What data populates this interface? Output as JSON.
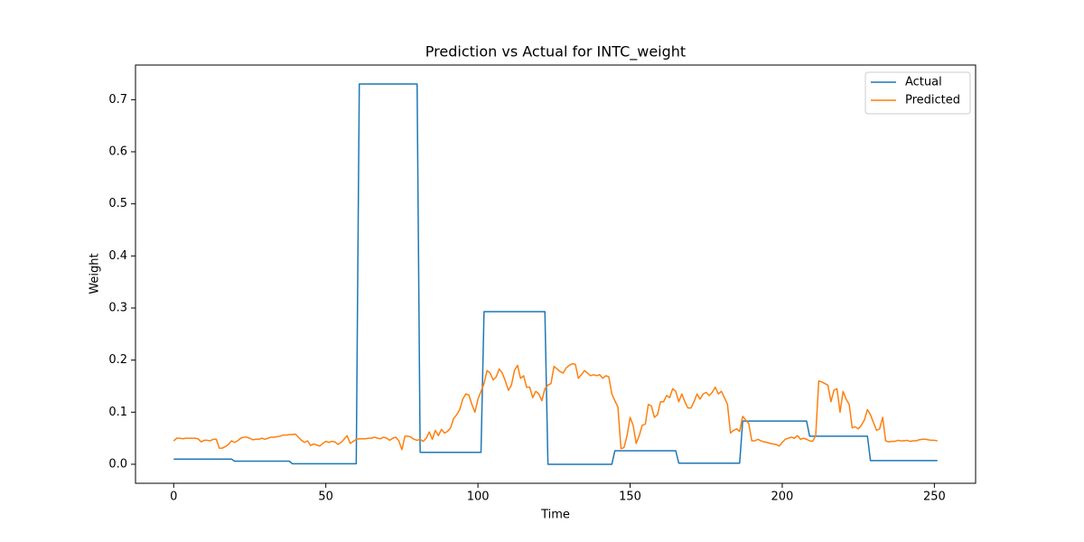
{
  "chart_data": {
    "type": "line",
    "title": "Prediction vs Actual for INTC_weight",
    "x_label": "Time",
    "y_label": "Weight",
    "legend": "upper right",
    "x": [
      0,
      1,
      2,
      3,
      4,
      5,
      6,
      7,
      8,
      9,
      10,
      11,
      12,
      13,
      14,
      15,
      16,
      17,
      18,
      19,
      20,
      21,
      22,
      23,
      24,
      25,
      26,
      27,
      28,
      29,
      30,
      31,
      32,
      33,
      34,
      35,
      36,
      37,
      38,
      39,
      40,
      41,
      42,
      43,
      44,
      45,
      46,
      47,
      48,
      49,
      50,
      51,
      52,
      53,
      54,
      55,
      56,
      57,
      58,
      59,
      60,
      61,
      62,
      63,
      64,
      65,
      66,
      67,
      68,
      69,
      70,
      71,
      72,
      73,
      74,
      75,
      76,
      77,
      78,
      79,
      80,
      81,
      82,
      83,
      84,
      85,
      86,
      87,
      88,
      89,
      90,
      91,
      92,
      93,
      94,
      95,
      96,
      97,
      98,
      99,
      100,
      101,
      102,
      103,
      104,
      105,
      106,
      107,
      108,
      109,
      110,
      111,
      112,
      113,
      114,
      115,
      116,
      117,
      118,
      119,
      120,
      121,
      122,
      123,
      124,
      125,
      126,
      127,
      128,
      129,
      130,
      131,
      132,
      133,
      134,
      135,
      136,
      137,
      138,
      139,
      140,
      141,
      142,
      143,
      144,
      145,
      146,
      147,
      148,
      149,
      150,
      151,
      152,
      153,
      154,
      155,
      156,
      157,
      158,
      159,
      160,
      161,
      162,
      163,
      164,
      165,
      166,
      167,
      168,
      169,
      170,
      171,
      172,
      173,
      174,
      175,
      176,
      177,
      178,
      179,
      180,
      181,
      182,
      183,
      184,
      185,
      186,
      187,
      188,
      189,
      190,
      191,
      192,
      193,
      194,
      195,
      196,
      197,
      198,
      199,
      200,
      201,
      202,
      203,
      204,
      205,
      206,
      207,
      208,
      209,
      210,
      211,
      212,
      213,
      214,
      215,
      216,
      217,
      218,
      219,
      220,
      221,
      222,
      223,
      224,
      225,
      226,
      227,
      228,
      229,
      230,
      231,
      232,
      233,
      234,
      235,
      236,
      237,
      238,
      239,
      240,
      241,
      242,
      243,
      244,
      245,
      246,
      247,
      248,
      249,
      250,
      251
    ],
    "series": [
      {
        "name": "Actual",
        "color": "#1f77b4",
        "values": [
          0.01,
          0.01,
          0.01,
          0.01,
          0.01,
          0.01,
          0.01,
          0.01,
          0.01,
          0.01,
          0.01,
          0.01,
          0.01,
          0.01,
          0.01,
          0.01,
          0.01,
          0.01,
          0.01,
          0.01,
          0.006,
          0.006,
          0.006,
          0.006,
          0.006,
          0.006,
          0.006,
          0.006,
          0.006,
          0.006,
          0.006,
          0.006,
          0.006,
          0.006,
          0.006,
          0.006,
          0.006,
          0.006,
          0.006,
          0.001,
          0.001,
          0.001,
          0.001,
          0.001,
          0.001,
          0.001,
          0.001,
          0.001,
          0.001,
          0.001,
          0.001,
          0.001,
          0.001,
          0.001,
          0.001,
          0.001,
          0.001,
          0.001,
          0.001,
          0.001,
          0.001,
          0.73,
          0.73,
          0.73,
          0.73,
          0.73,
          0.73,
          0.73,
          0.73,
          0.73,
          0.73,
          0.73,
          0.73,
          0.73,
          0.73,
          0.73,
          0.73,
          0.73,
          0.73,
          0.73,
          0.73,
          0.023,
          0.023,
          0.023,
          0.023,
          0.023,
          0.023,
          0.023,
          0.023,
          0.023,
          0.023,
          0.023,
          0.023,
          0.023,
          0.023,
          0.023,
          0.023,
          0.023,
          0.023,
          0.023,
          0.023,
          0.023,
          0.293,
          0.293,
          0.293,
          0.293,
          0.293,
          0.293,
          0.293,
          0.293,
          0.293,
          0.293,
          0.293,
          0.293,
          0.293,
          0.293,
          0.293,
          0.293,
          0.293,
          0.293,
          0.293,
          0.293,
          0.293,
          0,
          0,
          0,
          0,
          0,
          0,
          0,
          0,
          0,
          0,
          0,
          0,
          0,
          0,
          0,
          0,
          0,
          0,
          0,
          0,
          0,
          0,
          0.026,
          0.026,
          0.026,
          0.026,
          0.026,
          0.026,
          0.026,
          0.026,
          0.026,
          0.026,
          0.026,
          0.026,
          0.026,
          0.026,
          0.026,
          0.026,
          0.026,
          0.026,
          0.026,
          0.026,
          0.026,
          0.002,
          0.002,
          0.002,
          0.002,
          0.002,
          0.002,
          0.002,
          0.002,
          0.002,
          0.002,
          0.002,
          0.002,
          0.002,
          0.002,
          0.002,
          0.002,
          0.002,
          0.002,
          0.002,
          0.002,
          0.002,
          0.083,
          0.083,
          0.083,
          0.083,
          0.083,
          0.083,
          0.083,
          0.083,
          0.083,
          0.083,
          0.083,
          0.083,
          0.083,
          0.083,
          0.083,
          0.083,
          0.083,
          0.083,
          0.083,
          0.083,
          0.083,
          0.083,
          0.054,
          0.054,
          0.054,
          0.054,
          0.054,
          0.054,
          0.054,
          0.054,
          0.054,
          0.054,
          0.054,
          0.054,
          0.054,
          0.054,
          0.054,
          0.054,
          0.054,
          0.054,
          0.054,
          0.054,
          0.007,
          0.007,
          0.007,
          0.007,
          0.007,
          0.007,
          0.007,
          0.007,
          0.007,
          0.007,
          0.007,
          0.007,
          0.007,
          0.007,
          0.007,
          0.007,
          0.007,
          0.007,
          0.007,
          0.007,
          0.007,
          0.007,
          0.007
        ]
      },
      {
        "name": "Predicted",
        "color": "#ff7f0e",
        "values": [
          0.045,
          0.05,
          0.05,
          0.049,
          0.05,
          0.05,
          0.05,
          0.05,
          0.049,
          0.043,
          0.046,
          0.046,
          0.045,
          0.048,
          0.048,
          0.031,
          0.031,
          0.034,
          0.038,
          0.045,
          0.042,
          0.045,
          0.05,
          0.052,
          0.052,
          0.05,
          0.047,
          0.048,
          0.048,
          0.05,
          0.048,
          0.05,
          0.052,
          0.052,
          0.053,
          0.054,
          0.056,
          0.056,
          0.057,
          0.057,
          0.058,
          0.052,
          0.046,
          0.042,
          0.045,
          0.036,
          0.039,
          0.037,
          0.035,
          0.04,
          0.044,
          0.042,
          0.044,
          0.043,
          0.038,
          0.042,
          0.048,
          0.055,
          0.04,
          0.044,
          0.048,
          0.049,
          0.049,
          0.049,
          0.05,
          0.05,
          0.052,
          0.05,
          0.049,
          0.052,
          0.05,
          0.046,
          0.05,
          0.052,
          0.045,
          0.028,
          0.054,
          0.054,
          0.052,
          0.048,
          0.046,
          0.048,
          0.044,
          0.05,
          0.062,
          0.048,
          0.065,
          0.055,
          0.067,
          0.06,
          0.063,
          0.07,
          0.088,
          0.095,
          0.105,
          0.125,
          0.135,
          0.133,
          0.115,
          0.1,
          0.125,
          0.14,
          0.155,
          0.18,
          0.175,
          0.162,
          0.168,
          0.183,
          0.175,
          0.16,
          0.142,
          0.152,
          0.18,
          0.19,
          0.165,
          0.17,
          0.148,
          0.148,
          0.128,
          0.14,
          0.135,
          0.122,
          0.145,
          0.152,
          0.155,
          0.188,
          0.183,
          0.178,
          0.175,
          0.185,
          0.19,
          0.193,
          0.192,
          0.165,
          0.172,
          0.18,
          0.175,
          0.17,
          0.172,
          0.17,
          0.172,
          0.165,
          0.17,
          0.168,
          0.135,
          0.122,
          0.11,
          0.03,
          0.032,
          0.055,
          0.09,
          0.075,
          0.04,
          0.055,
          0.075,
          0.077,
          0.115,
          0.112,
          0.09,
          0.095,
          0.12,
          0.12,
          0.132,
          0.128,
          0.145,
          0.14,
          0.12,
          0.135,
          0.12,
          0.108,
          0.108,
          0.12,
          0.135,
          0.125,
          0.135,
          0.138,
          0.132,
          0.138,
          0.148,
          0.135,
          0.14,
          0.128,
          0.115,
          0.06,
          0.065,
          0.068,
          0.063,
          0.092,
          0.085,
          0.078,
          0.045,
          0.045,
          0.048,
          0.045,
          0.043,
          0.042,
          0.04,
          0.039,
          0.038,
          0.035,
          0.042,
          0.048,
          0.05,
          0.052,
          0.05,
          0.055,
          0.048,
          0.05,
          0.048,
          0.045,
          0.044,
          0.055,
          0.16,
          0.158,
          0.155,
          0.152,
          0.12,
          0.142,
          0.145,
          0.1,
          0.14,
          0.125,
          0.115,
          0.07,
          0.072,
          0.068,
          0.075,
          0.085,
          0.105,
          0.095,
          0.08,
          0.065,
          0.068,
          0.09,
          0.045,
          0.043,
          0.044,
          0.044,
          0.046,
          0.045,
          0.045,
          0.046,
          0.044,
          0.045,
          0.045,
          0.047,
          0.048,
          0.048,
          0.047,
          0.046,
          0.046,
          0.045
        ]
      }
    ],
    "xlim": [
      -12.55,
      263.55
    ],
    "ylim": [
      -0.0365,
      0.7665
    ],
    "xticks": [
      0,
      50,
      100,
      150,
      200,
      250
    ],
    "yticks": [
      {
        "value": 0,
        "label": "0.0"
      },
      0.1,
      0.2,
      0.3,
      0.4,
      0.5,
      0.6,
      0.7
    ]
  }
}
